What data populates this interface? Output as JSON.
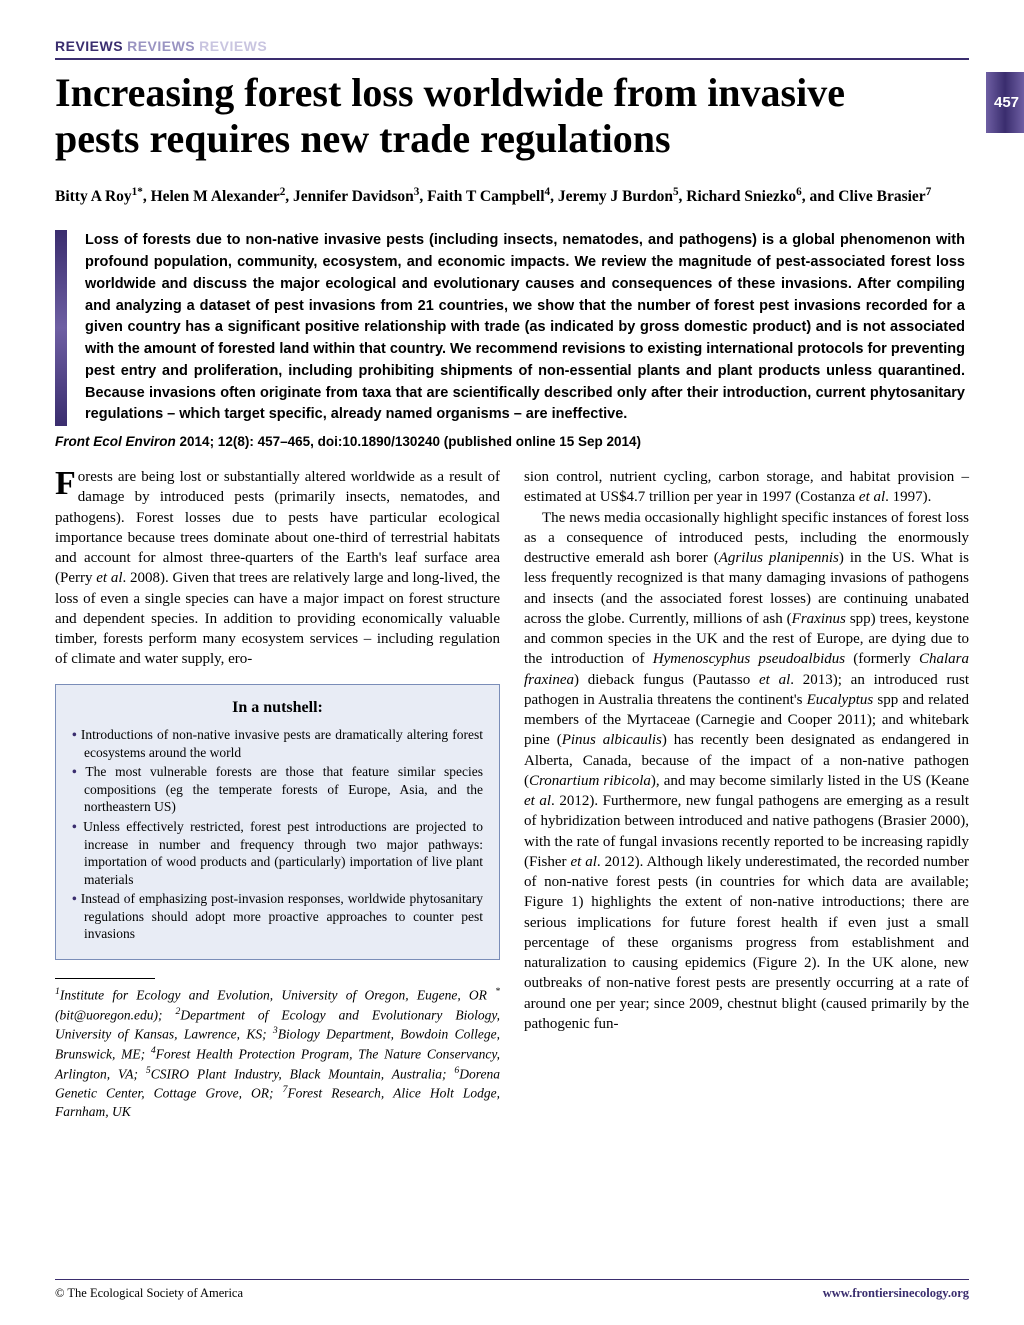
{
  "reviews": {
    "r1": "REVIEWS",
    "r2": "REVIEWS",
    "r3": "REVIEWS"
  },
  "pageNumber": "457",
  "title": "Increasing forest loss worldwide from invasive pests requires new trade regulations",
  "authorsHtml": "Bitty A Roy<sup>1*</sup>, Helen M Alexander<sup>2</sup>, Jennifer Davidson<sup>3</sup>, Faith T Campbell<sup>4</sup>, Jeremy J Burdon<sup>5</sup>, Richard Sniezko<sup>6</sup>, and Clive Brasier<sup>7</sup>",
  "abstract": "Loss of forests due to non-native invasive pests (including insects, nematodes, and pathogens) is a global phenomenon with profound population, community, ecosystem, and economic impacts. We review the magnitude of pest-associated forest loss worldwide and discuss the major ecological and evolutionary causes and consequences of these invasions. After compiling and analyzing a dataset of pest invasions from 21 countries, we show that the number of forest pest invasions recorded for a given country has a significant positive relationship with trade (as indicated by gross domestic product) and is not associated with the amount of forested land within that country. We recommend revisions to existing international protocols for preventing pest entry and proliferation, including prohibiting shipments of non-essential plants and plant products unless quarantined. Because invasions often originate from taxa that are scientifically described only after their introduction, current phytosanitary regulations – which target specific, already named organisms – are ineffective.",
  "citation": "Front Ecol Environ 2014; 12(8): 457–465, doi:10.1890/130240  (published online 15 Sep 2014)",
  "col1": {
    "p1Html": "Forests are being lost or substantially altered worldwide as a result of damage by introduced pests (primarily insects, nematodes, and pathogens). Forest losses due to pests have particular ecological importance because trees dominate about one-third of terrestrial habitats and account for almost three-quarters of the Earth's leaf surface area (Perry <span class=\"ital\">et al</span>. 2008). Given that trees are relatively large and long-lived, the loss of even a single species can have a major impact on forest structure and dependent species. In addition to providing economically valuable timber, forests perform many ecosystem services – including regulation of climate and water supply, ero-"
  },
  "nutshell": {
    "title": "In a nutshell:",
    "items": [
      "Introductions of non-native invasive pests are dramatically altering forest ecosystems around the world",
      "The most vulnerable forests are those that feature similar species compositions (eg the temperate forests of Europe, Asia, and the northeastern US)",
      "Unless effectively restricted, forest pest introductions are projected to increase in number and frequency through two major pathways: importation of wood products and (particularly) importation of live plant materials",
      "Instead of emphasizing post-invasion responses, worldwide phytosanitary regulations should adopt more proactive approaches to counter pest invasions"
    ]
  },
  "affiliationsHtml": "<sup>1</sup>Institute for Ecology and Evolution, University of Oregon, Eugene, OR <sup>*</sup>(bit@uoregon.edu); <sup>2</sup>Department of Ecology and Evolutionary Biology, University of Kansas, Lawrence, KS; <sup>3</sup>Biology Department, Bowdoin College, Brunswick, ME; <sup>4</sup>Forest Health Protection Program, The Nature Conservancy, Arlington, VA; <sup>5</sup>CSIRO Plant Industry, Black Mountain, Australia; <sup>6</sup>Dorena Genetic Center, Cottage Grove, OR; <sup>7</sup>Forest Research, Alice Holt Lodge, Farnham, UK",
  "col2": {
    "p1Html": "sion control, nutrient cycling, carbon storage, and habitat provision – estimated at US$4.7 trillion per year in 1997 (Costanza <span class=\"ital\">et al</span>. 1997).",
    "p2Html": "The news media occasionally highlight specific instances of forest loss as a consequence of introduced pests, including the enormously destructive emerald ash borer (<span class=\"ital\">Agrilus planipennis</span>) in the US. What is less frequently recognized is that many damaging invasions of pathogens and insects (and the associated forest losses) are continuing unabated across the globe. Currently, millions of ash (<span class=\"ital\">Fraxinus</span> spp) trees, keystone and common species in the UK and the rest of Europe, are dying due to the introduction of <span class=\"ital\">Hymenoscyphus pseudoalbidus</span> (formerly <span class=\"ital\">Chalara fraxinea</span>) dieback fungus (Pautasso <span class=\"ital\">et al</span>. 2013); an introduced rust pathogen in Australia threatens the continent's <span class=\"ital\">Eucalyptus</span> spp and related members of the Myrtaceae (Carnegie and Cooper 2011); and whitebark pine (<span class=\"ital\">Pinus albicaulis</span>) has recently been designated as endangered in Alberta, Canada, because of the impact of a non-native pathogen (<span class=\"ital\">Cronartium ribicola</span>), and may become similarly listed in the US (Keane <span class=\"ital\">et al</span>. 2012). Furthermore, new fungal pathogens are emerging as a result of hybridization between introduced and native pathogens (Brasier 2000), with the rate of fungal invasions recently reported to be increasing rapidly (Fisher <span class=\"ital\">et al</span>. 2012). Although likely underestimated, the recorded number of non-native forest pests (in countries for which data are available; Figure 1) highlights the extent of non-native introductions; there are serious implications for future forest health if even just a small percentage of these organisms progress from establishment and naturalization to causing epidemics (Figure 2). In the UK alone, new outbreaks of non-native forest pests are presently occurring at a rate of around one per year; since 2009, chestnut blight (caused primarily by the pathogenic fun-"
  },
  "footer": {
    "left": "© The Ecological Society of America",
    "right": "www.frontiersinecology.org"
  },
  "colors": {
    "brand": "#3a2d6e",
    "brandLight": "#6e5fa3",
    "nutshellBg": "#e8ecf5",
    "nutshellBorder": "#7a8db8"
  }
}
